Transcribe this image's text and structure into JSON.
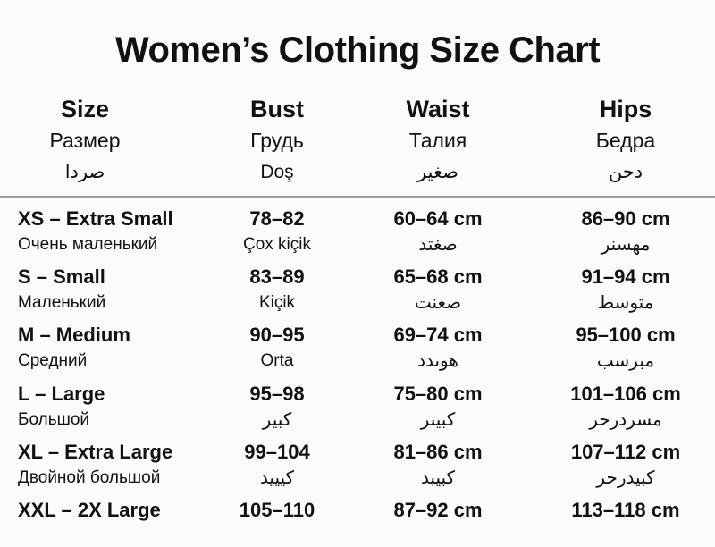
{
  "colors": {
    "text": "#111111",
    "background": "#fbfbfb",
    "divider": "#9e9e9e"
  },
  "chart_data": {
    "type": "table",
    "title": "Women’s Clothing Size Chart",
    "columns": [
      {
        "label": "Size",
        "sub1": "Размер",
        "sub2": "صردا"
      },
      {
        "label": "Bust",
        "sub1": "Грудь",
        "sub2": "Doş"
      },
      {
        "label": "Waist",
        "sub1": "Талия",
        "sub2": "صغير"
      },
      {
        "label": "Hips",
        "sub1": "Бедра",
        "sub2": "دحن"
      }
    ],
    "rows": [
      {
        "size": "XS – Extra Small",
        "size_sub": "Очень маленький",
        "bust": "78–82",
        "bust_sub": "Çox kiçik",
        "waist": "60–64 cm",
        "waist_sub": "صغتد",
        "hips": "86–90 cm",
        "hips_sub": "مهسنر"
      },
      {
        "size": "S – Small",
        "size_sub": "Маленький",
        "bust": "83–89",
        "bust_sub": "Kiçik",
        "waist": "65–68 cm",
        "waist_sub": "صعنت",
        "hips": "91–94 cm",
        "hips_sub": "متوسط"
      },
      {
        "size": "M – Medium",
        "size_sub": "Средний",
        "bust": "90–95",
        "bust_sub": "Orta",
        "waist": "69–74 cm",
        "waist_sub": "هوىدد",
        "hips": "95–100 cm",
        "hips_sub": "مبرسب"
      },
      {
        "size": "L – Large",
        "size_sub": "Большой",
        "bust": "95–98",
        "bust_sub": "كبير",
        "waist": "75–80 cm",
        "waist_sub": "كبينر",
        "hips": "101–106 cm",
        "hips_sub": "مسردرحر"
      },
      {
        "size": "XL – Extra Large",
        "size_sub": "Двойной большой",
        "bust": "99–104",
        "bust_sub": "كيييد",
        "waist": "81–86 cm",
        "waist_sub": "كبيبد",
        "hips": "107–112 cm",
        "hips_sub": "كبيدرحر"
      },
      {
        "size": "XXL – 2X Large",
        "size_sub": "",
        "bust": "105–110",
        "bust_sub": "",
        "waist": "87–92 cm",
        "waist_sub": "",
        "hips": "113–118 cm",
        "hips_sub": ""
      }
    ]
  }
}
